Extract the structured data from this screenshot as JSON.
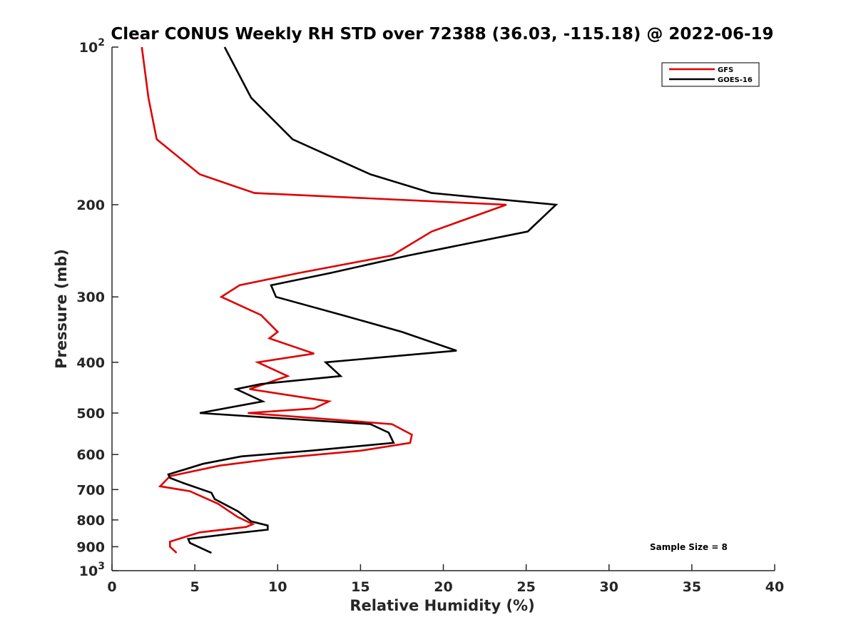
{
  "chart_data": {
    "type": "line",
    "title": "Clear CONUS Weekly RH STD over 72388 (36.03, -115.18) @ 2022-06-19",
    "xlabel": "Relative Humidity (%)",
    "ylabel": "Pressure (mb)",
    "xlim": [
      0,
      40
    ],
    "ylim": [
      100,
      1000
    ],
    "yscale": "log",
    "y_reversed": true,
    "grid": false,
    "legend_position": "top-right",
    "x_ticks": [
      "0",
      "5",
      "10",
      "15",
      "20",
      "25",
      "30",
      "35",
      "40"
    ],
    "y_ticks": [
      {
        "value": 100,
        "base": "10",
        "exp": "2"
      },
      {
        "value": 200,
        "label": "200"
      },
      {
        "value": 300,
        "label": "300"
      },
      {
        "value": 400,
        "label": "400"
      },
      {
        "value": 500,
        "label": "500"
      },
      {
        "value": 600,
        "label": "600"
      },
      {
        "value": 700,
        "label": "700"
      },
      {
        "value": 800,
        "label": "800"
      },
      {
        "value": 900,
        "label": "900"
      },
      {
        "value": 1000,
        "base": "10",
        "exp": "3"
      }
    ],
    "series": [
      {
        "name": "GFS",
        "color": "#e00000",
        "points": [
          [
            1.8,
            100
          ],
          [
            2.2,
            125
          ],
          [
            2.7,
            150
          ],
          [
            5.3,
            175
          ],
          [
            8.6,
            190
          ],
          [
            23.8,
            200
          ],
          [
            19.3,
            225
          ],
          [
            16.9,
            250
          ],
          [
            11.3,
            270
          ],
          [
            7.7,
            285
          ],
          [
            6.6,
            300
          ],
          [
            9.0,
            325
          ],
          [
            10.0,
            350
          ],
          [
            9.5,
            360
          ],
          [
            12.2,
            385
          ],
          [
            8.8,
            400
          ],
          [
            10.6,
            425
          ],
          [
            8.3,
            450
          ],
          [
            13.1,
            475
          ],
          [
            12.2,
            490
          ],
          [
            8.2,
            500
          ],
          [
            16.9,
            525
          ],
          [
            18.1,
            550
          ],
          [
            18.0,
            570
          ],
          [
            15.0,
            590
          ],
          [
            10.0,
            610
          ],
          [
            6.5,
            630
          ],
          [
            3.5,
            660
          ],
          [
            3.1,
            680
          ],
          [
            2.9,
            690
          ],
          [
            4.7,
            705
          ],
          [
            6.4,
            745
          ],
          [
            7.6,
            790
          ],
          [
            8.5,
            815
          ],
          [
            8.1,
            825
          ],
          [
            5.3,
            845
          ],
          [
            3.5,
            880
          ],
          [
            3.5,
            900
          ],
          [
            3.9,
            925
          ]
        ]
      },
      {
        "name": "GOES-16",
        "color": "#000000",
        "points": [
          [
            6.8,
            100
          ],
          [
            8.4,
            125
          ],
          [
            10.9,
            150
          ],
          [
            15.6,
            175
          ],
          [
            19.3,
            190
          ],
          [
            26.8,
            200
          ],
          [
            25.1,
            225
          ],
          [
            17.9,
            250
          ],
          [
            13.2,
            270
          ],
          [
            9.6,
            285
          ],
          [
            9.9,
            300
          ],
          [
            13.9,
            325
          ],
          [
            17.5,
            350
          ],
          [
            20.8,
            380
          ],
          [
            12.9,
            400
          ],
          [
            13.8,
            425
          ],
          [
            9.0,
            440
          ],
          [
            7.5,
            450
          ],
          [
            9.1,
            475
          ],
          [
            5.3,
            500
          ],
          [
            15.6,
            525
          ],
          [
            16.7,
            545
          ],
          [
            17.0,
            570
          ],
          [
            12.0,
            590
          ],
          [
            7.8,
            605
          ],
          [
            5.5,
            625
          ],
          [
            3.4,
            655
          ],
          [
            3.5,
            665
          ],
          [
            4.3,
            680
          ],
          [
            6.0,
            710
          ],
          [
            6.2,
            730
          ],
          [
            7.6,
            770
          ],
          [
            8.4,
            805
          ],
          [
            9.4,
            820
          ],
          [
            9.4,
            835
          ],
          [
            7.2,
            850
          ],
          [
            4.6,
            870
          ],
          [
            4.7,
            885
          ],
          [
            6.0,
            925
          ]
        ]
      }
    ],
    "annotation": "Sample Size = 8"
  }
}
